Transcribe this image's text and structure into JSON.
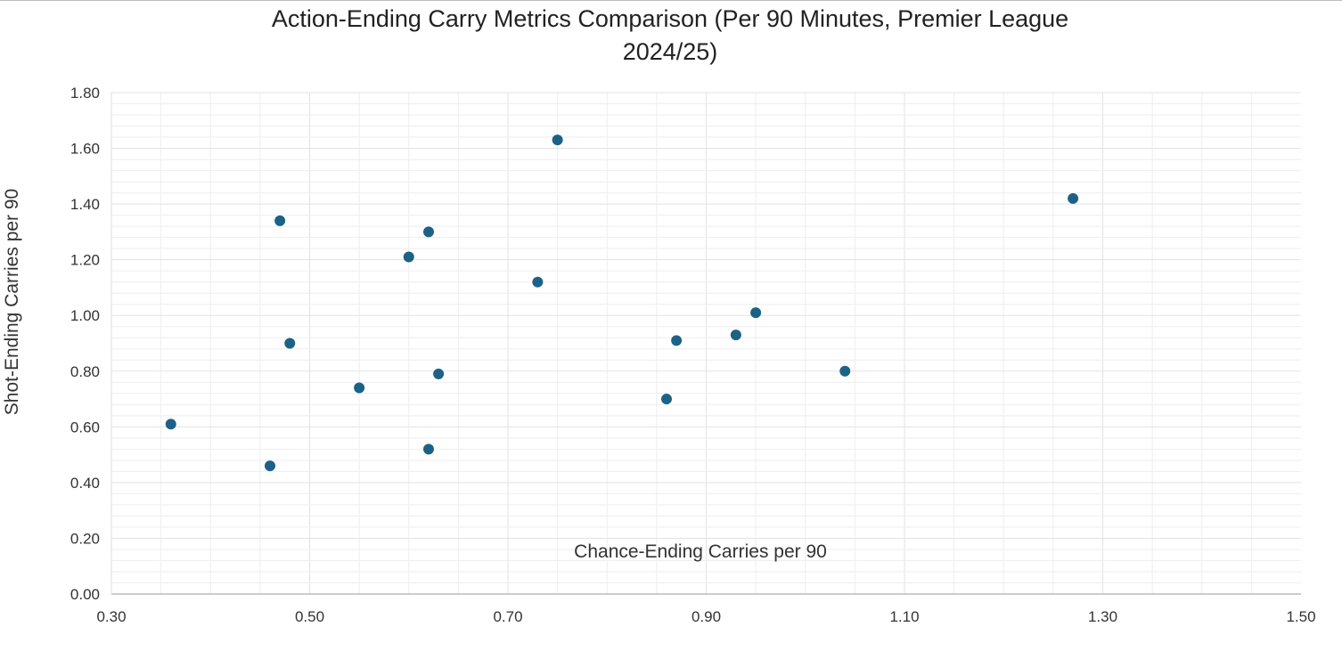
{
  "chart_data": {
    "type": "scatter",
    "title": "Action-Ending Carry Metrics Comparison (Per 90 Minutes, Premier League 2024/25)",
    "title_lines": [
      "Action-Ending Carry Metrics Comparison (Per 90 Minutes, Premier League",
      "2024/25)"
    ],
    "xlabel": "Chance-Ending Carries per 90",
    "ylabel": "Shot-Ending Carries per 90",
    "xlim": [
      0.3,
      1.5
    ],
    "ylim": [
      0.0,
      1.8
    ],
    "x_ticks": [
      "0.30",
      "0.50",
      "0.70",
      "0.90",
      "1.10",
      "1.30",
      "1.50"
    ],
    "y_ticks": [
      "0.00",
      "0.20",
      "0.40",
      "0.60",
      "0.80",
      "1.00",
      "1.20",
      "1.40",
      "1.60",
      "1.80"
    ],
    "grid": true,
    "legend": "none",
    "marker_color": "#1c6286",
    "points": [
      {
        "x": 0.36,
        "y": 0.61
      },
      {
        "x": 0.46,
        "y": 0.46
      },
      {
        "x": 0.47,
        "y": 1.34
      },
      {
        "x": 0.48,
        "y": 0.9
      },
      {
        "x": 0.55,
        "y": 0.74
      },
      {
        "x": 0.6,
        "y": 1.21
      },
      {
        "x": 0.62,
        "y": 1.3
      },
      {
        "x": 0.62,
        "y": 0.52
      },
      {
        "x": 0.63,
        "y": 0.79
      },
      {
        "x": 0.73,
        "y": 1.12
      },
      {
        "x": 0.75,
        "y": 1.63
      },
      {
        "x": 0.86,
        "y": 0.7
      },
      {
        "x": 0.87,
        "y": 0.91
      },
      {
        "x": 0.93,
        "y": 0.93
      },
      {
        "x": 0.95,
        "y": 1.01
      },
      {
        "x": 1.04,
        "y": 0.8
      },
      {
        "x": 1.27,
        "y": 1.42
      }
    ]
  }
}
